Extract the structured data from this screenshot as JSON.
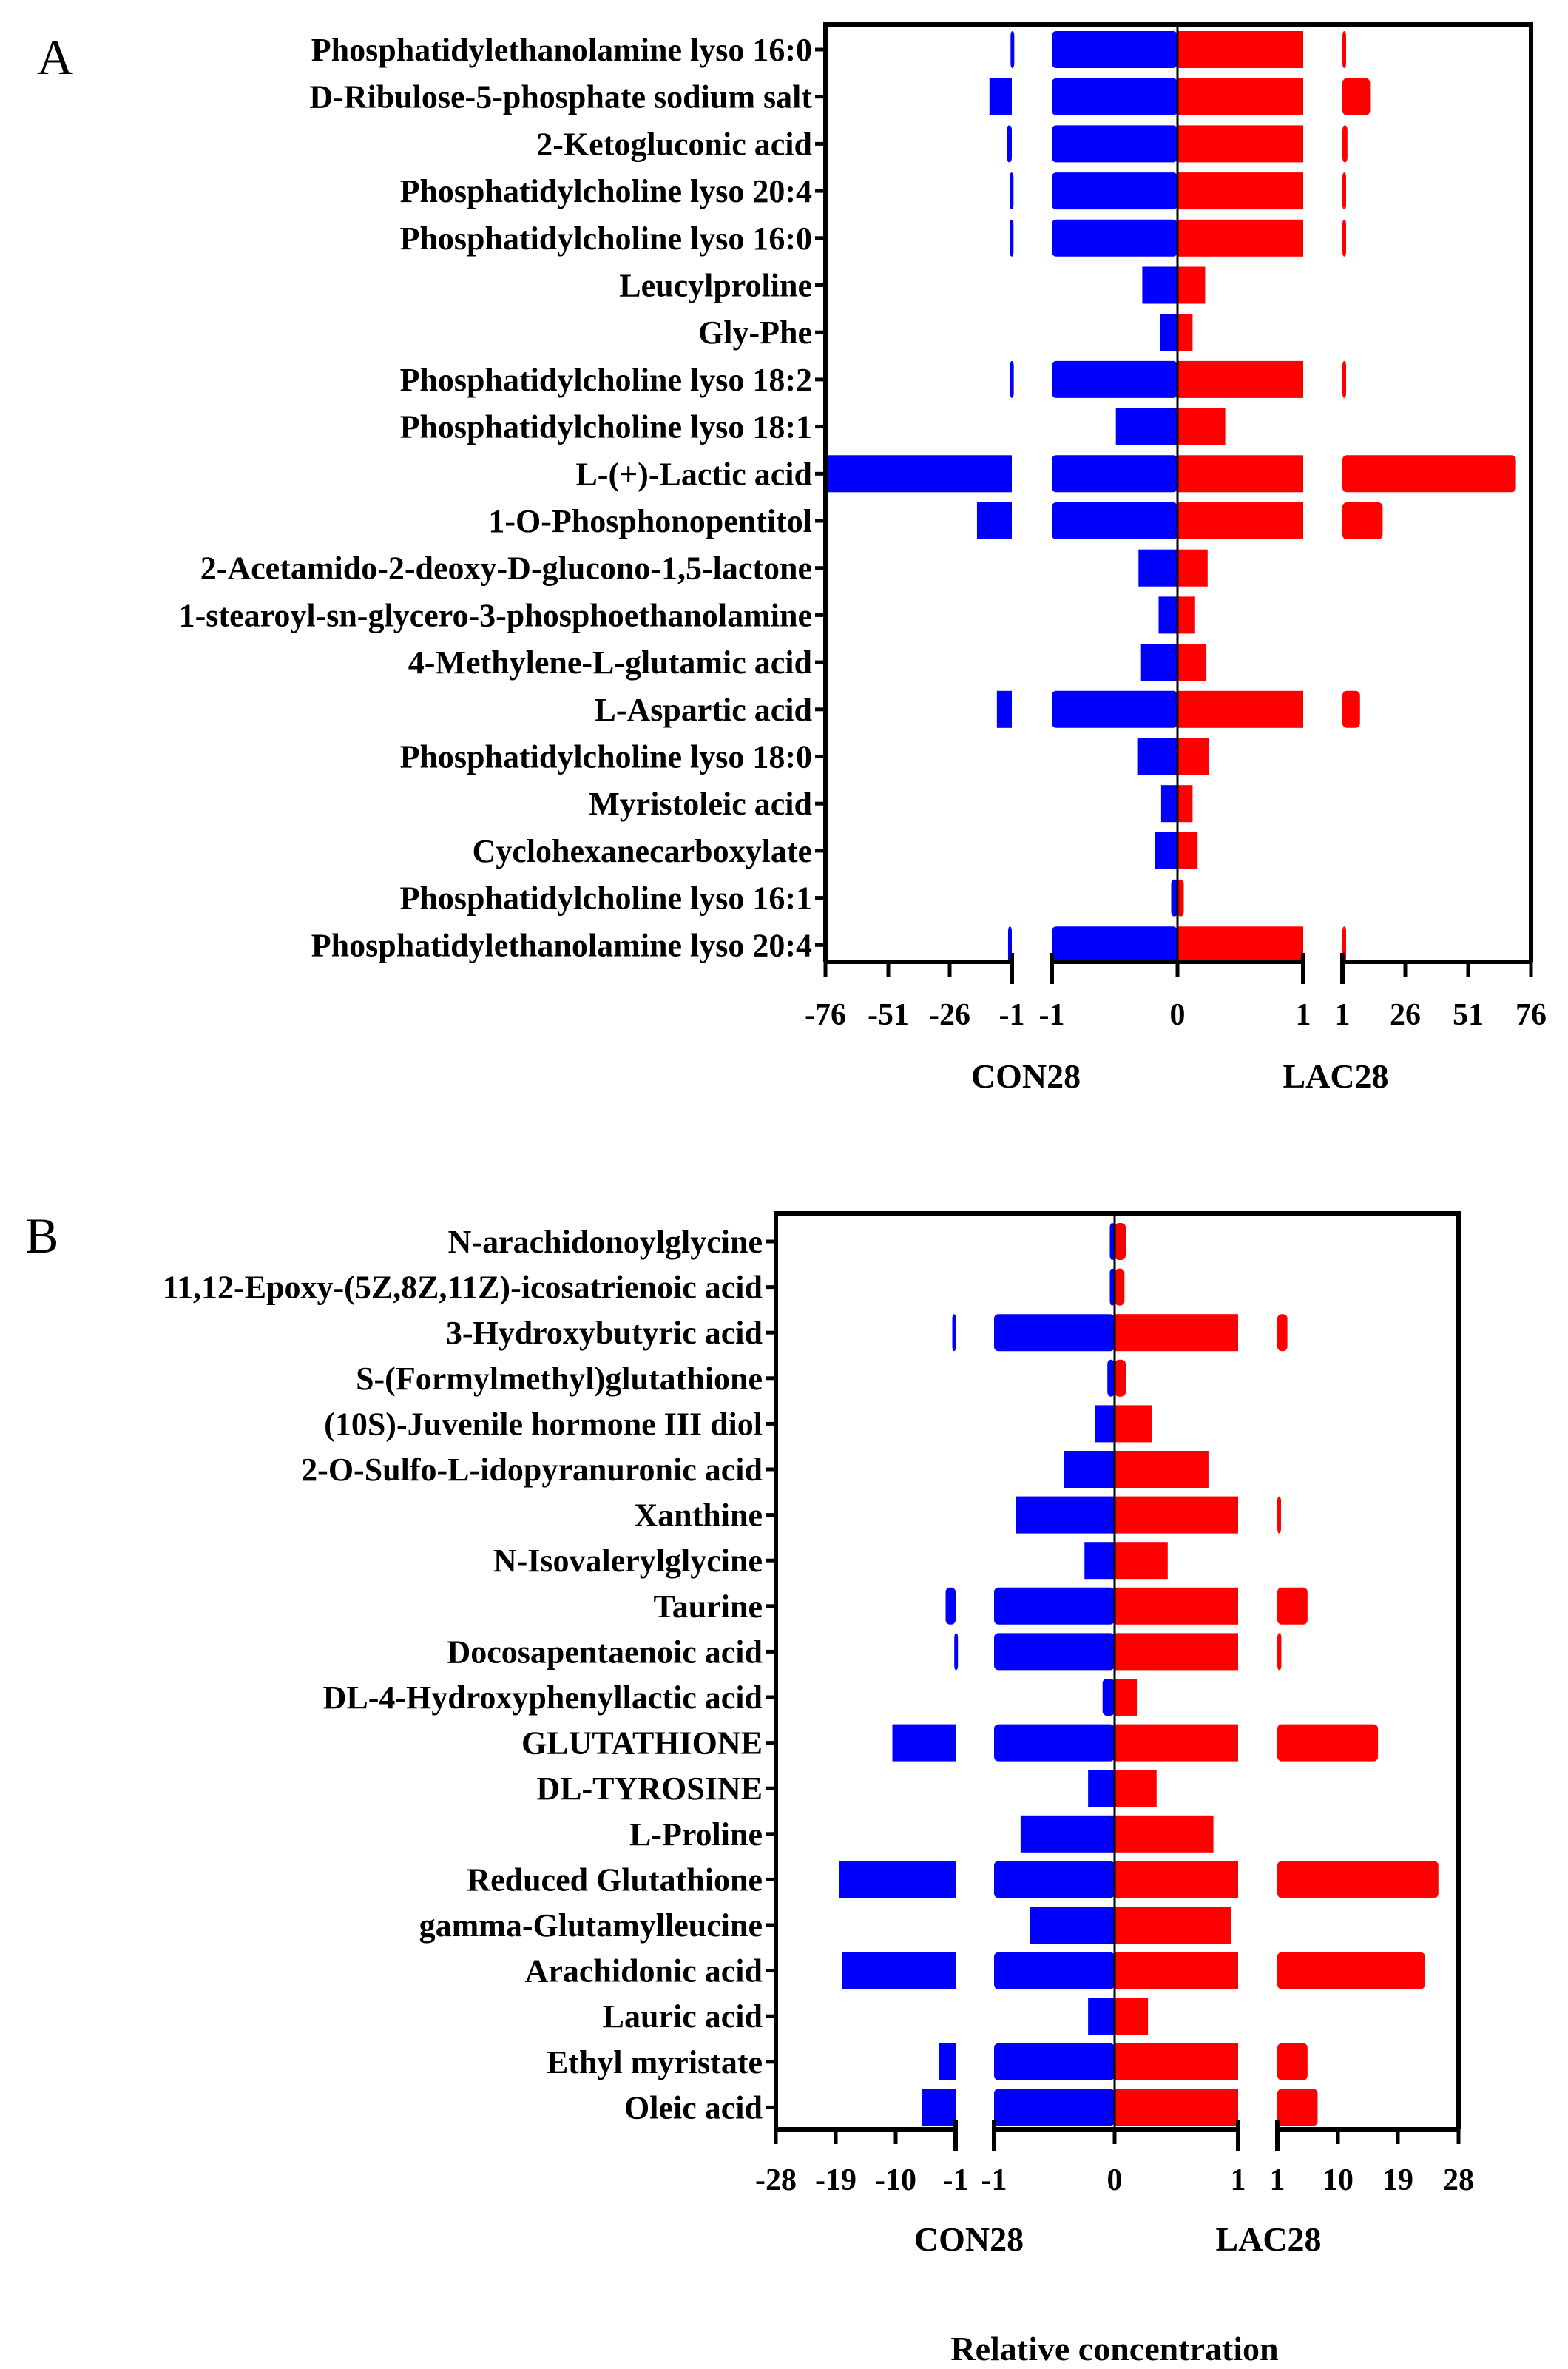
{
  "chart_data": [
    {
      "type": "bar",
      "subtype": "mirrored-broken-axis",
      "panel": "A",
      "categories": [
        "Phosphatidylethanolamine lyso 16:0",
        "D-Ribulose-5-phosphate sodium salt",
        "2-Ketogluconic acid",
        "Phosphatidylcholine lyso 20:4",
        "Phosphatidylcholine lyso 16:0",
        "Leucylproline",
        "Gly-Phe",
        "Phosphatidylcholine lyso 18:2",
        "Phosphatidylcholine lyso 18:1",
        "L-(+)-Lactic acid",
        "1-O-Phosphonopentitol",
        "2-Acetamido-2-deoxy-D-glucono-1,5-lactone",
        "1-stearoyl-sn-glycero-3-phosphoethanolamine",
        "4-Methylene-L-glutamic acid",
        "L-Aspartic acid",
        "Phosphatidylcholine lyso 18:0",
        "Myristoleic acid",
        "Cyclohexanecarboxylate",
        "Phosphatidylcholine lyso 16:1",
        "Phosphatidylethanolamine lyso 20:4"
      ],
      "series": [
        {
          "name": "CON28",
          "color": "#0000ff",
          "values": [
            -1.5,
            -10,
            -3,
            -1.8,
            -1.8,
            -0.28,
            -0.14,
            -1.7,
            -0.49,
            -76,
            -15,
            -0.31,
            -0.15,
            -0.29,
            -7,
            -0.32,
            -0.13,
            -0.18,
            -0.05,
            -2.5
          ]
        },
        {
          "name": "LAC28",
          "color": "#ff0000",
          "values": [
            2,
            12,
            3,
            1.5,
            2,
            0.22,
            0.12,
            1.8,
            0.38,
            70,
            17,
            0.24,
            0.14,
            0.23,
            8,
            0.25,
            0.12,
            0.16,
            0.05,
            2
          ]
        }
      ],
      "xticks": [
        "-76",
        "-51",
        "-26",
        "-1",
        "-1",
        "0",
        "1",
        "1",
        "26",
        "51",
        "76"
      ],
      "xlim": [
        -76,
        76
      ],
      "axis_breaks": [
        -1,
        1
      ],
      "group_labels": [
        "CON28",
        "LAC28"
      ]
    },
    {
      "type": "bar",
      "subtype": "mirrored-broken-axis",
      "panel": "B",
      "categories": [
        "N-arachidonoylglycine",
        "11,12-Epoxy-(5Z,8Z,11Z)-icosatrienoic acid",
        "3-Hydroxybutyric acid",
        "S-(Formylmethyl)glutathione",
        "(10S)-Juvenile hormone III diol",
        "2-O-Sulfo-L-idopyranuronic acid",
        "Xanthine",
        "N-Isovalerylglycine",
        "Taurine",
        "Docosapentaenoic acid",
        "DL-4-Hydroxyphenyllactic acid",
        "GLUTATHIONE",
        "DL-TYROSINE",
        "L-Proline",
        "Reduced Glutathione",
        "gamma-Glutamylleucine",
        "Arachidonic acid",
        "Lauric acid",
        "Ethyl myristate",
        "Oleic acid"
      ],
      "series": [
        {
          "name": "CON28",
          "color": "#0000ff",
          "values": [
            -0.04,
            -0.04,
            -1.5,
            -0.06,
            -0.16,
            -0.42,
            -0.82,
            -0.25,
            -2.5,
            -1.2,
            -0.1,
            -10.5,
            -0.22,
            -0.78,
            -18.5,
            -0.7,
            -18,
            -0.22,
            -3.5,
            -6
          ]
        },
        {
          "name": "LAC28",
          "color": "#ff0000",
          "values": [
            0.09,
            0.08,
            2.5,
            0.09,
            0.3,
            0.76,
            1.5,
            0.43,
            5.5,
            1.6,
            0.18,
            16,
            0.34,
            0.8,
            25,
            0.94,
            23,
            0.27,
            5.5,
            7
          ]
        }
      ],
      "xticks": [
        "-28",
        "-19",
        "-10",
        "-1",
        "-1",
        "0",
        "1",
        "1",
        "10",
        "19",
        "28"
      ],
      "xlim": [
        -28,
        28
      ],
      "axis_breaks": [
        -1,
        1
      ],
      "group_labels": [
        "CON28",
        "LAC28"
      ],
      "xlabel": "Relative concentration"
    }
  ]
}
